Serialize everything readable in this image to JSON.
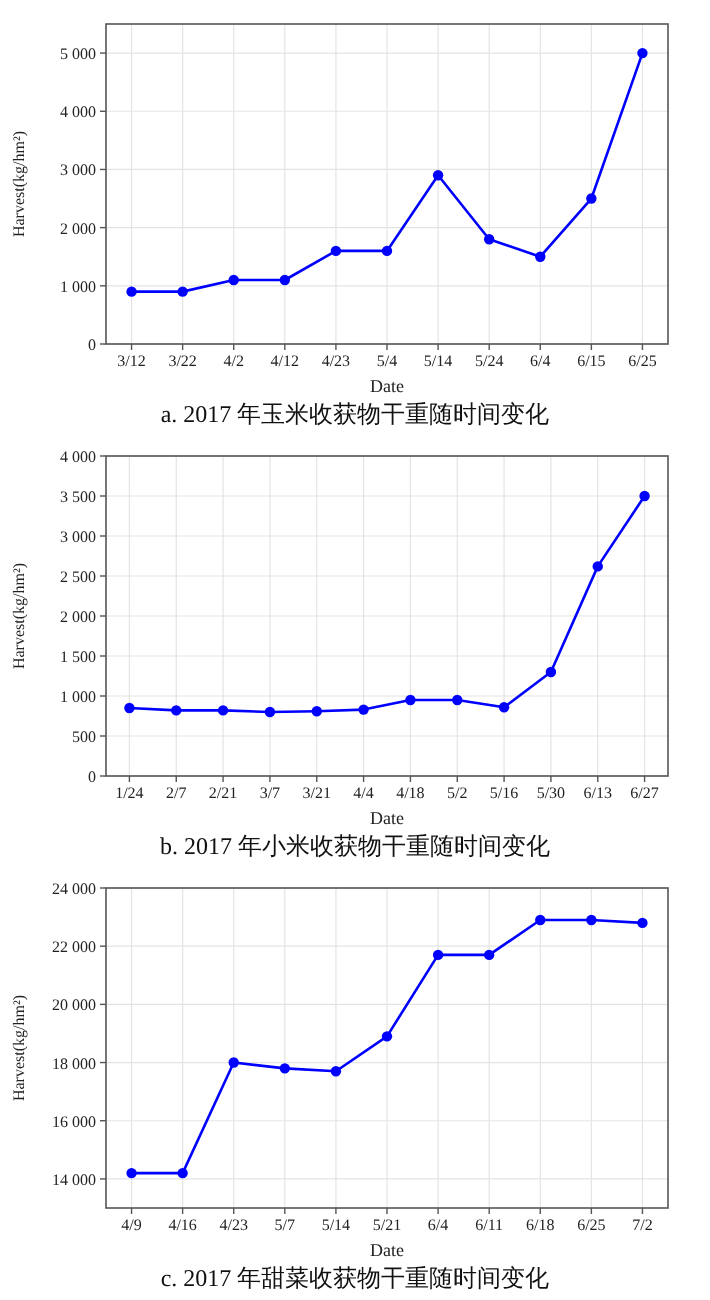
{
  "chart_data": [
    {
      "type": "line",
      "title": "a. 2017 年玉米收获物干重随时间变化",
      "xlabel": "Date",
      "ylabel": "Harvest(kg/hm²)",
      "categories": [
        "3/12",
        "3/22",
        "4/2",
        "4/12",
        "4/23",
        "5/4",
        "5/14",
        "5/24",
        "6/4",
        "6/15",
        "6/25"
      ],
      "series": [
        {
          "color": "#0000ff",
          "values": [
            900,
            900,
            1100,
            1100,
            1600,
            1600,
            2900,
            1800,
            1500,
            2500,
            5000
          ]
        }
      ],
      "ylim": [
        0,
        5500
      ],
      "yticks": [
        {
          "value": 0,
          "label": "0"
        },
        {
          "value": 1000,
          "label": "1 000"
        },
        {
          "value": 2000,
          "label": "2 000"
        },
        {
          "value": 3000,
          "label": "3 000"
        },
        {
          "value": 4000,
          "label": "4 000"
        },
        {
          "value": 5000,
          "label": "5 000"
        }
      ],
      "grid": true,
      "marker": "circle",
      "line_style": "solid"
    },
    {
      "type": "line",
      "title": "b. 2017 年小米收获物干重随时间变化",
      "xlabel": "Date",
      "ylabel": "Harvest(kg/hm²)",
      "categories": [
        "1/24",
        "2/7",
        "2/21",
        "3/7",
        "3/21",
        "4/4",
        "4/18",
        "5/2",
        "5/16",
        "5/30",
        "6/13",
        "6/27"
      ],
      "series": [
        {
          "color": "#0000ff",
          "values": [
            850,
            820,
            820,
            800,
            810,
            830,
            950,
            950,
            860,
            1300,
            2620,
            3500
          ]
        }
      ],
      "ylim": [
        0,
        4000
      ],
      "yticks": [
        0,
        500,
        {
          "value": 1000,
          "label": "1 000"
        },
        {
          "value": 1500,
          "label": "1 500"
        },
        {
          "value": 2000,
          "label": "2 000"
        },
        {
          "value": 2500,
          "label": "2 500"
        },
        {
          "value": 3000,
          "label": "3 000"
        },
        {
          "value": 3500,
          "label": "3 500"
        },
        {
          "value": 4000,
          "label": "4 000"
        }
      ],
      "grid": true,
      "marker": "circle",
      "line_style": "solid"
    },
    {
      "type": "line",
      "title": "c. 2017 年甜菜收获物干重随时间变化",
      "xlabel": "Date",
      "ylabel": "Harvest(kg/hm²)",
      "categories": [
        "4/9",
        "4/16",
        "4/23",
        "5/7",
        "5/14",
        "5/21",
        "6/4",
        "6/11",
        "6/18",
        "6/25",
        "7/2"
      ],
      "series": [
        {
          "color": "#0000ff",
          "values": [
            14200,
            14200,
            18000,
            17800,
            17700,
            18900,
            21700,
            21700,
            22900,
            22900,
            22800
          ]
        }
      ],
      "ylim": [
        13000,
        24000
      ],
      "yticks": [
        {
          "value": 14000,
          "label": "14 000"
        },
        {
          "value": 16000,
          "label": "16 000"
        },
        {
          "value": 18000,
          "label": "18 000"
        },
        {
          "value": 20000,
          "label": "20 000"
        },
        {
          "value": 22000,
          "label": "22 000"
        },
        {
          "value": 24000,
          "label": "24 000"
        }
      ],
      "grid": true,
      "marker": "circle",
      "line_style": "solid"
    }
  ]
}
